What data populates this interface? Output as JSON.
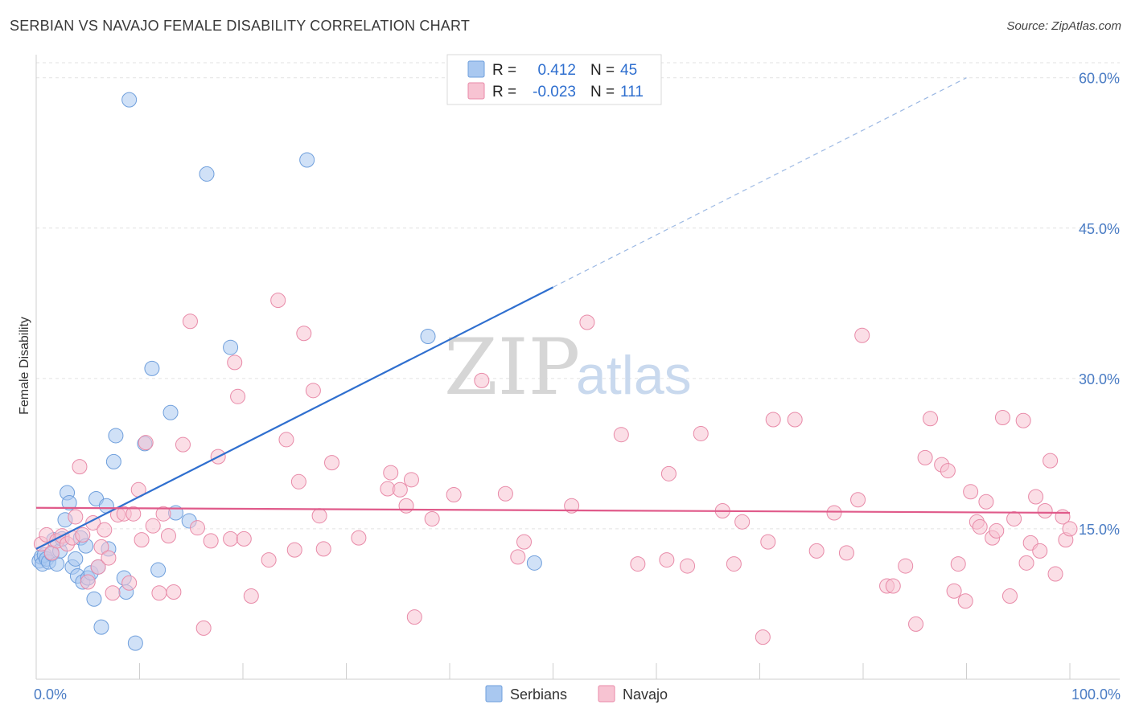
{
  "title": "SERBIAN VS NAVAJO FEMALE DISABILITY CORRELATION CHART",
  "source": "Source: ZipAtlas.com",
  "watermark": {
    "part1": "ZIP",
    "part2": "atlas"
  },
  "legend": {
    "rows": [
      {
        "r_label": "R =",
        "r_value": "0.412",
        "n_label": "N =",
        "n_value": "45",
        "color": "#a9c8f0",
        "stroke": "#6f9fdc"
      },
      {
        "r_label": "R =",
        "r_value": "-0.023",
        "n_label": "N =",
        "n_value": "111",
        "color": "#f7c3d2",
        "stroke": "#e88aa8"
      }
    ]
  },
  "bottom_legend": [
    {
      "label": "Serbians",
      "color": "#a9c8f0",
      "stroke": "#6f9fdc"
    },
    {
      "label": "Navajo",
      "color": "#f7c3d2",
      "stroke": "#e88aa8"
    }
  ],
  "chart_data": {
    "type": "scatter",
    "title": "SERBIAN VS NAVAJO FEMALE DISABILITY CORRELATION CHART",
    "xlabel": "",
    "ylabel": "Female Disability",
    "xlim": [
      0,
      100
    ],
    "ylim": [
      0,
      61.5
    ],
    "y_ticks": [
      {
        "value": 15,
        "label": "15.0%"
      },
      {
        "value": 30,
        "label": "30.0%"
      },
      {
        "value": 45,
        "label": "45.0%"
      },
      {
        "value": 60,
        "label": "60.0%"
      }
    ],
    "x_ticks": [
      0,
      10,
      20,
      30,
      40,
      50,
      60,
      70,
      80,
      90,
      100
    ],
    "x_tick_labels": [
      {
        "value": 0,
        "label": "0.0%"
      },
      {
        "value": 100,
        "label": "100.0%"
      }
    ],
    "grid": true,
    "series": [
      {
        "name": "Serbians",
        "color": "#a9c8f0",
        "stroke": "#6f9fdc",
        "trend": {
          "x0": 0,
          "y0": 13.0,
          "x1": 50,
          "y1": 39.1,
          "extend_to_x": 90,
          "extend_y": 60.0,
          "color": "#2f6fcf"
        },
        "points": [
          [
            0.3,
            11.8
          ],
          [
            0.5,
            12.2
          ],
          [
            0.6,
            11.5
          ],
          [
            0.8,
            12.4
          ],
          [
            1.0,
            12.0
          ],
          [
            1.2,
            11.7
          ],
          [
            1.5,
            12.5
          ],
          [
            1.7,
            13.9
          ],
          [
            2.0,
            11.5
          ],
          [
            2.3,
            12.8
          ],
          [
            2.5,
            14.0
          ],
          [
            2.8,
            15.9
          ],
          [
            3.0,
            18.6
          ],
          [
            3.2,
            17.6
          ],
          [
            3.5,
            11.2
          ],
          [
            3.8,
            12.0
          ],
          [
            4.0,
            10.3
          ],
          [
            4.3,
            14.1
          ],
          [
            4.5,
            9.7
          ],
          [
            4.8,
            13.3
          ],
          [
            5.0,
            10.1
          ],
          [
            5.3,
            10.6
          ],
          [
            5.6,
            8.0
          ],
          [
            5.8,
            18.0
          ],
          [
            6.0,
            11.2
          ],
          [
            6.3,
            5.2
          ],
          [
            6.8,
            17.3
          ],
          [
            7.0,
            13.0
          ],
          [
            7.5,
            21.7
          ],
          [
            7.7,
            24.3
          ],
          [
            8.5,
            10.1
          ],
          [
            8.7,
            8.7
          ],
          [
            9.0,
            57.8
          ],
          [
            9.6,
            3.6
          ],
          [
            10.5,
            23.5
          ],
          [
            11.2,
            31.0
          ],
          [
            11.8,
            10.9
          ],
          [
            13.0,
            26.6
          ],
          [
            13.5,
            16.6
          ],
          [
            14.8,
            15.8
          ],
          [
            16.5,
            50.4
          ],
          [
            18.8,
            33.1
          ],
          [
            26.2,
            51.8
          ],
          [
            37.9,
            34.2
          ],
          [
            48.2,
            11.6
          ]
        ]
      },
      {
        "name": "Navajo",
        "color": "#f7c3d2",
        "stroke": "#e88aa8",
        "trend": {
          "x0": 0,
          "y0": 17.1,
          "x1": 100,
          "y1": 16.6,
          "color": "#e05a8a"
        },
        "points": [
          [
            0.5,
            13.5
          ],
          [
            1.0,
            14.4
          ],
          [
            1.5,
            12.6
          ],
          [
            2.0,
            13.8
          ],
          [
            2.5,
            14.3
          ],
          [
            3.0,
            13.5
          ],
          [
            3.5,
            14.1
          ],
          [
            3.8,
            16.2
          ],
          [
            4.2,
            21.2
          ],
          [
            4.5,
            14.4
          ],
          [
            5.0,
            9.7
          ],
          [
            5.5,
            15.6
          ],
          [
            6.0,
            11.2
          ],
          [
            6.3,
            13.2
          ],
          [
            6.6,
            14.9
          ],
          [
            7.0,
            12.1
          ],
          [
            7.4,
            8.6
          ],
          [
            7.9,
            16.4
          ],
          [
            8.5,
            16.5
          ],
          [
            9.0,
            9.6
          ],
          [
            9.4,
            16.5
          ],
          [
            9.9,
            18.9
          ],
          [
            10.2,
            13.9
          ],
          [
            10.6,
            23.6
          ],
          [
            11.3,
            15.3
          ],
          [
            11.9,
            8.6
          ],
          [
            12.3,
            16.5
          ],
          [
            12.8,
            14.3
          ],
          [
            13.3,
            8.7
          ],
          [
            14.2,
            23.4
          ],
          [
            14.9,
            35.7
          ],
          [
            15.6,
            15.1
          ],
          [
            16.2,
            5.1
          ],
          [
            16.9,
            13.8
          ],
          [
            17.6,
            22.2
          ],
          [
            18.8,
            14.0
          ],
          [
            19.2,
            31.6
          ],
          [
            19.5,
            28.2
          ],
          [
            20.1,
            14.0
          ],
          [
            20.8,
            8.3
          ],
          [
            22.5,
            11.9
          ],
          [
            23.4,
            37.8
          ],
          [
            24.2,
            23.9
          ],
          [
            25.0,
            12.9
          ],
          [
            25.4,
            19.7
          ],
          [
            25.9,
            34.5
          ],
          [
            26.8,
            28.8
          ],
          [
            27.4,
            16.3
          ],
          [
            27.8,
            13.0
          ],
          [
            28.6,
            21.6
          ],
          [
            31.2,
            14.1
          ],
          [
            34.0,
            19.0
          ],
          [
            34.3,
            20.6
          ],
          [
            35.2,
            18.9
          ],
          [
            35.8,
            17.3
          ],
          [
            36.3,
            19.9
          ],
          [
            36.6,
            6.2
          ],
          [
            38.3,
            16.0
          ],
          [
            40.4,
            18.4
          ],
          [
            43.1,
            29.8
          ],
          [
            45.4,
            18.5
          ],
          [
            46.6,
            12.2
          ],
          [
            47.2,
            13.7
          ],
          [
            51.8,
            17.3
          ],
          [
            53.3,
            35.6
          ],
          [
            56.6,
            24.4
          ],
          [
            58.2,
            11.5
          ],
          [
            61.0,
            11.9
          ],
          [
            61.2,
            20.5
          ],
          [
            63.0,
            11.3
          ],
          [
            64.3,
            24.5
          ],
          [
            66.4,
            16.8
          ],
          [
            67.5,
            11.5
          ],
          [
            68.3,
            15.7
          ],
          [
            70.3,
            4.2
          ],
          [
            70.8,
            13.7
          ],
          [
            71.3,
            25.9
          ],
          [
            73.4,
            25.9
          ],
          [
            75.5,
            12.8
          ],
          [
            77.2,
            16.6
          ],
          [
            78.4,
            12.6
          ],
          [
            79.5,
            17.9
          ],
          [
            79.9,
            34.3
          ],
          [
            82.3,
            9.3
          ],
          [
            82.9,
            9.3
          ],
          [
            84.1,
            11.3
          ],
          [
            85.1,
            5.5
          ],
          [
            86.0,
            22.1
          ],
          [
            86.5,
            26.0
          ],
          [
            87.6,
            21.4
          ],
          [
            88.2,
            20.8
          ],
          [
            88.8,
            8.8
          ],
          [
            89.2,
            11.5
          ],
          [
            89.9,
            7.8
          ],
          [
            90.4,
            18.7
          ],
          [
            91.0,
            15.7
          ],
          [
            91.3,
            15.2
          ],
          [
            91.9,
            17.7
          ],
          [
            92.5,
            14.1
          ],
          [
            92.9,
            14.8
          ],
          [
            93.5,
            26.1
          ],
          [
            94.2,
            8.3
          ],
          [
            94.6,
            16.0
          ],
          [
            95.5,
            25.8
          ],
          [
            95.8,
            11.6
          ],
          [
            96.2,
            13.6
          ],
          [
            96.7,
            18.2
          ],
          [
            97.1,
            12.8
          ],
          [
            97.6,
            16.8
          ],
          [
            98.1,
            21.8
          ],
          [
            98.6,
            10.5
          ],
          [
            99.3,
            16.2
          ],
          [
            99.6,
            13.9
          ],
          [
            100.0,
            15.0
          ]
        ]
      }
    ]
  }
}
